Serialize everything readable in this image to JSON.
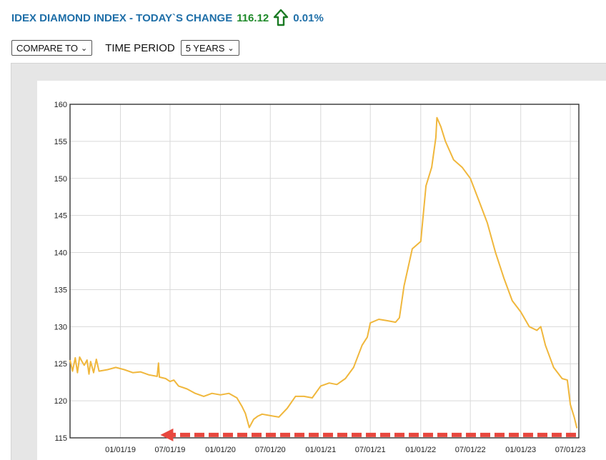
{
  "header": {
    "title": "IDEX DIAMOND INDEX - TODAY`S CHANGE",
    "change_value": "116.12",
    "change_pct": "0.01%",
    "arrow_icon": "up-arrow-icon",
    "colors": {
      "title": "#1f6fa8",
      "value": "#1f8a2a"
    }
  },
  "controls": {
    "compare_label": "COMPARE TO",
    "time_period_label": "TIME PERIOD",
    "period_value": "5 YEARS"
  },
  "chart_data": {
    "type": "line",
    "title": "",
    "xlabel": "",
    "ylabel": "",
    "ylim": [
      115,
      160
    ],
    "yticks": [
      115,
      120,
      125,
      130,
      135,
      140,
      145,
      150,
      155,
      160
    ],
    "xlim": [
      "2018-07-01",
      "2023-08-01"
    ],
    "xticks": [
      "01/01/19",
      "07/01/19",
      "01/01/20",
      "07/01/20",
      "01/01/21",
      "07/01/21",
      "01/01/22",
      "07/01/22",
      "01/01/23",
      "07/01/23"
    ],
    "grid": true,
    "legend": "none",
    "series": [
      {
        "color": "#f0b73c",
        "points": [
          [
            "2018-07-01",
            125.5
          ],
          [
            "2018-07-10",
            124.0
          ],
          [
            "2018-07-20",
            125.8
          ],
          [
            "2018-07-28",
            123.8
          ],
          [
            "2018-08-05",
            125.9
          ],
          [
            "2018-08-15",
            125.2
          ],
          [
            "2018-08-22",
            124.8
          ],
          [
            "2018-09-01",
            125.5
          ],
          [
            "2018-09-08",
            123.6
          ],
          [
            "2018-09-14",
            125.3
          ],
          [
            "2018-09-25",
            123.8
          ],
          [
            "2018-10-05",
            125.6
          ],
          [
            "2018-10-15",
            124.0
          ],
          [
            "2018-11-15",
            124.2
          ],
          [
            "2018-12-15",
            124.5
          ],
          [
            "2019-01-15",
            124.2
          ],
          [
            "2019-02-15",
            123.8
          ],
          [
            "2019-03-15",
            123.9
          ],
          [
            "2019-04-15",
            123.5
          ],
          [
            "2019-05-15",
            123.3
          ],
          [
            "2019-05-20",
            125.1
          ],
          [
            "2019-05-23",
            123.2
          ],
          [
            "2019-06-15",
            123.0
          ],
          [
            "2019-07-01",
            122.6
          ],
          [
            "2019-07-15",
            122.8
          ],
          [
            "2019-08-01",
            122.0
          ],
          [
            "2019-09-01",
            121.6
          ],
          [
            "2019-10-01",
            121.0
          ],
          [
            "2019-11-01",
            120.6
          ],
          [
            "2019-12-01",
            121.0
          ],
          [
            "2020-01-01",
            120.8
          ],
          [
            "2020-02-01",
            121.0
          ],
          [
            "2020-03-01",
            120.4
          ],
          [
            "2020-03-20",
            119.2
          ],
          [
            "2020-04-01",
            118.3
          ],
          [
            "2020-04-15",
            116.4
          ],
          [
            "2020-05-01",
            117.5
          ],
          [
            "2020-05-15",
            117.9
          ],
          [
            "2020-06-01",
            118.2
          ],
          [
            "2020-07-01",
            118.0
          ],
          [
            "2020-08-01",
            117.8
          ],
          [
            "2020-09-01",
            119.0
          ],
          [
            "2020-10-01",
            120.6
          ],
          [
            "2020-11-01",
            120.6
          ],
          [
            "2020-12-01",
            120.4
          ],
          [
            "2021-01-01",
            122.0
          ],
          [
            "2021-02-01",
            122.4
          ],
          [
            "2021-03-01",
            122.2
          ],
          [
            "2021-04-01",
            123.0
          ],
          [
            "2021-05-01",
            124.5
          ],
          [
            "2021-06-01",
            127.5
          ],
          [
            "2021-06-20",
            128.6
          ],
          [
            "2021-07-01",
            130.5
          ],
          [
            "2021-08-01",
            131.0
          ],
          [
            "2021-09-01",
            130.8
          ],
          [
            "2021-10-01",
            130.6
          ],
          [
            "2021-10-15",
            131.2
          ],
          [
            "2021-11-01",
            135.5
          ],
          [
            "2021-12-01",
            140.5
          ],
          [
            "2022-01-01",
            141.5
          ],
          [
            "2022-01-20",
            149.0
          ],
          [
            "2022-02-10",
            151.5
          ],
          [
            "2022-02-25",
            155.5
          ],
          [
            "2022-03-01",
            158.2
          ],
          [
            "2022-03-15",
            157.0
          ],
          [
            "2022-04-01",
            155.0
          ],
          [
            "2022-05-01",
            152.5
          ],
          [
            "2022-06-01",
            151.5
          ],
          [
            "2022-07-01",
            150.0
          ],
          [
            "2022-08-01",
            147.0
          ],
          [
            "2022-09-01",
            144.0
          ],
          [
            "2022-10-01",
            140.0
          ],
          [
            "2022-11-01",
            136.5
          ],
          [
            "2022-12-01",
            133.5
          ],
          [
            "2023-01-01",
            132.0
          ],
          [
            "2023-02-01",
            130.0
          ],
          [
            "2023-03-01",
            129.5
          ],
          [
            "2023-03-15",
            130.0
          ],
          [
            "2023-04-01",
            127.5
          ],
          [
            "2023-05-01",
            124.5
          ],
          [
            "2023-06-01",
            123.0
          ],
          [
            "2023-06-20",
            122.8
          ],
          [
            "2023-07-01",
            119.5
          ],
          [
            "2023-07-15",
            117.8
          ],
          [
            "2023-07-25",
            116.3
          ]
        ]
      }
    ],
    "annotations": [
      {
        "type": "arrow",
        "style": "dashed",
        "color": "#e8473e",
        "direction": "left",
        "y": 115.4,
        "x_from": "2023-08-01",
        "x_to": "2019-06-01"
      }
    ]
  }
}
